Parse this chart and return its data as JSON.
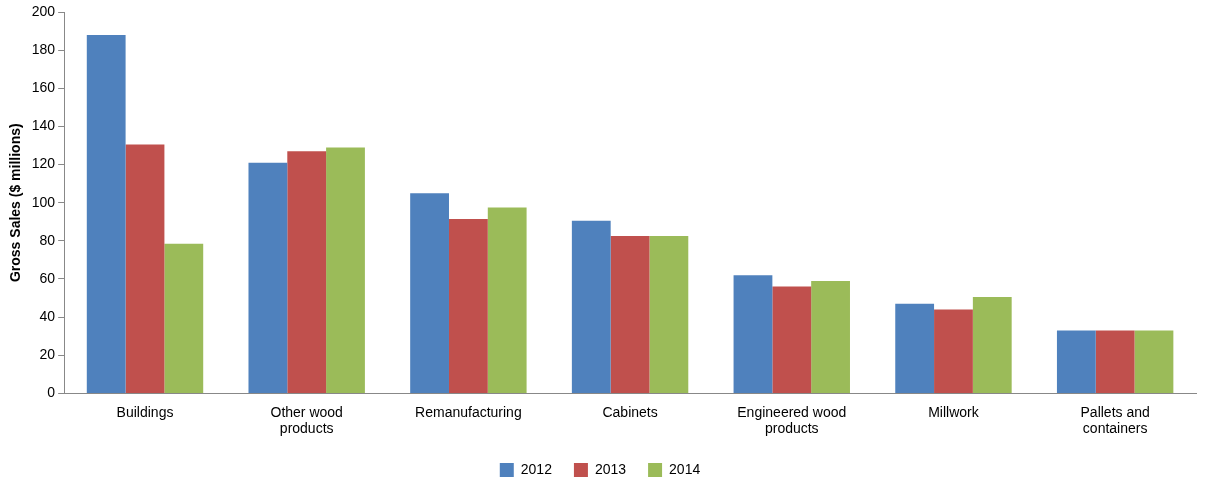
{
  "chart_data": {
    "type": "bar",
    "ylabel": "Gross Sales ($ millions)",
    "categories": [
      "Buildings",
      "Other wood products",
      "Remanufacturing",
      "Cabinets",
      "Engineered wood products",
      "Millwork",
      "Pallets and containers"
    ],
    "series": [
      {
        "name": "2012",
        "color": "#4f81bd",
        "values": [
          188,
          121,
          105,
          90.5,
          62,
          47,
          33
        ]
      },
      {
        "name": "2013",
        "color": "#c0504d",
        "values": [
          130.5,
          127,
          91.5,
          82.5,
          56,
          44,
          33
        ]
      },
      {
        "name": "2014",
        "color": "#9bbb59",
        "values": [
          78.5,
          129,
          97.5,
          82.5,
          59,
          50.5,
          33
        ]
      }
    ],
    "ylim": [
      0,
      200
    ],
    "yticks": [
      0,
      20,
      40,
      60,
      80,
      100,
      120,
      140,
      160,
      180,
      200
    ],
    "grid": false,
    "legend": "bottom"
  }
}
